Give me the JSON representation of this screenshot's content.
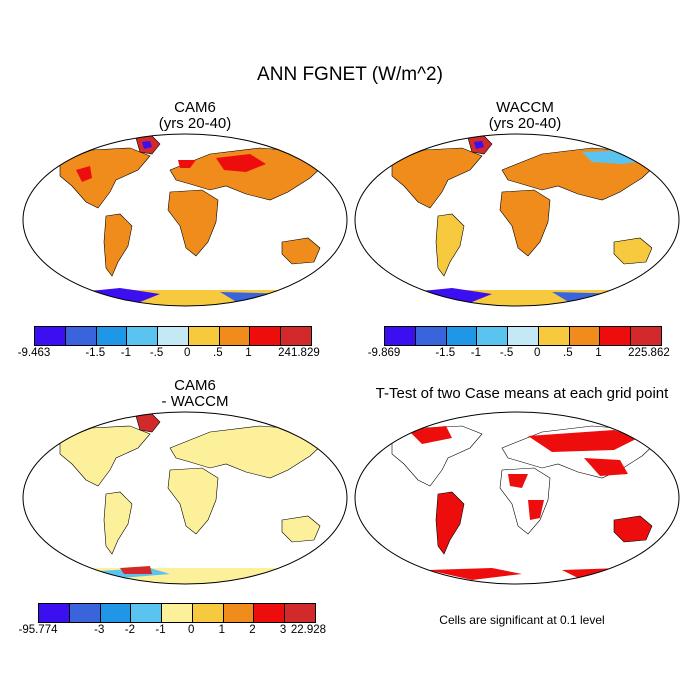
{
  "title": "ANN FGNET (W/m^2)",
  "panels": {
    "cam6": {
      "title_line1": "CAM6",
      "title_line2": "(yrs 20-40)",
      "colorbar": {
        "colors": [
          "#3b0ff0",
          "#3a64dc",
          "#1f96e6",
          "#5ac3f0",
          "#c4e9f4",
          "#f6c93f",
          "#f08c1c",
          "#ee0d0d",
          "#d22a2a"
        ],
        "labels": [
          "-9.463",
          "-1.5",
          "-1",
          "-.5",
          "0",
          ".5",
          "1",
          "241.829"
        ]
      }
    },
    "waccm": {
      "title_line1": "WACCM",
      "title_line2": "(yrs 20-40)",
      "colorbar": {
        "colors": [
          "#3b0ff0",
          "#3a64dc",
          "#1f96e6",
          "#5ac3f0",
          "#c4e9f4",
          "#f6c93f",
          "#f08c1c",
          "#ee0d0d",
          "#d22a2a"
        ],
        "labels": [
          "-9.869",
          "-1.5",
          "-1",
          "-.5",
          "0",
          ".5",
          "1",
          "225.862"
        ]
      }
    },
    "diff": {
      "title_line1": "CAM6",
      "title_line2": "- WACCM",
      "colorbar": {
        "colors": [
          "#3b0ff0",
          "#3a64dc",
          "#1f96e6",
          "#5ac3f0",
          "#fcf09a",
          "#f6c93f",
          "#f08c1c",
          "#ee0d0d",
          "#d22a2a"
        ],
        "labels": [
          "-95.774",
          "-3",
          "-2",
          "-1",
          "0",
          "1",
          "2",
          "3",
          "22.928"
        ]
      }
    },
    "ttest": {
      "title": "T-Test of two Case means at each grid point",
      "note": "Cells are significant at 0.1 level"
    }
  },
  "map_colors": {
    "ocean": "#ffffff",
    "cam6_land": "#f08c1c",
    "waccm_land": "#f08c1c",
    "diff_land": "#fcf09a",
    "ttest_sig": "#ee0d0d"
  }
}
